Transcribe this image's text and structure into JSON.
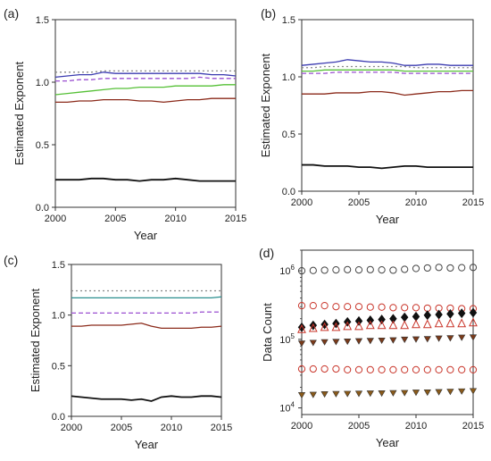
{
  "chart_data": [
    {
      "type": "line",
      "panel_label": "(a)",
      "xlabel": "Year",
      "ylabel": "Estimated Exponent",
      "xlim": [
        2000,
        2015
      ],
      "ylim": [
        0.0,
        1.5
      ],
      "xticks": [
        "2000",
        "2005",
        "2010",
        "2015"
      ],
      "yticks": [
        "0.0",
        "0.5",
        "1.0",
        "1.5"
      ],
      "x": [
        2000,
        2001,
        2002,
        2003,
        2004,
        2005,
        2006,
        2007,
        2008,
        2009,
        2010,
        2011,
        2012,
        2013,
        2014,
        2015
      ],
      "series": [
        {
          "color": "#888888",
          "style": "dotted",
          "values": [
            1.08,
            1.08,
            1.08,
            1.08,
            1.09,
            1.09,
            1.09,
            1.09,
            1.09,
            1.09,
            1.09,
            1.09,
            1.09,
            1.09,
            1.09,
            1.09
          ]
        },
        {
          "color": "#3b3bb0",
          "style": "solid",
          "values": [
            1.04,
            1.05,
            1.06,
            1.06,
            1.08,
            1.07,
            1.07,
            1.07,
            1.07,
            1.07,
            1.07,
            1.07,
            1.07,
            1.06,
            1.06,
            1.05
          ]
        },
        {
          "color": "#9a4fd0",
          "style": "dashed",
          "values": [
            1.01,
            1.01,
            1.02,
            1.02,
            1.03,
            1.03,
            1.03,
            1.03,
            1.03,
            1.03,
            1.03,
            1.03,
            1.04,
            1.03,
            1.03,
            1.03
          ]
        },
        {
          "color": "#55c036",
          "style": "solid",
          "values": [
            0.9,
            0.91,
            0.92,
            0.93,
            0.94,
            0.95,
            0.95,
            0.96,
            0.96,
            0.96,
            0.97,
            0.97,
            0.97,
            0.97,
            0.98,
            0.98
          ]
        },
        {
          "color": "#8b2a1a",
          "style": "solid",
          "values": [
            0.84,
            0.84,
            0.85,
            0.85,
            0.86,
            0.86,
            0.86,
            0.85,
            0.85,
            0.84,
            0.85,
            0.86,
            0.86,
            0.87,
            0.87,
            0.87
          ]
        },
        {
          "color": "#111111",
          "style": "solid",
          "values": [
            0.22,
            0.22,
            0.22,
            0.23,
            0.23,
            0.22,
            0.22,
            0.21,
            0.22,
            0.22,
            0.23,
            0.22,
            0.21,
            0.21,
            0.21,
            0.21
          ]
        }
      ]
    },
    {
      "type": "line",
      "panel_label": "(b)",
      "xlabel": "Year",
      "ylabel": "Estimated Exponent",
      "xlim": [
        2000,
        2015
      ],
      "ylim": [
        0.0,
        1.5
      ],
      "xticks": [
        "2000",
        "2005",
        "2010",
        "2015"
      ],
      "yticks": [
        "0.0",
        "0.5",
        "1.0",
        "1.5"
      ],
      "x": [
        2000,
        2001,
        2002,
        2003,
        2004,
        2005,
        2006,
        2007,
        2008,
        2009,
        2010,
        2011,
        2012,
        2013,
        2014,
        2015
      ],
      "series": [
        {
          "color": "#3b3bb0",
          "style": "solid",
          "values": [
            1.1,
            1.11,
            1.12,
            1.13,
            1.15,
            1.14,
            1.13,
            1.13,
            1.12,
            1.1,
            1.1,
            1.11,
            1.11,
            1.1,
            1.1,
            1.1
          ]
        },
        {
          "color": "#888888",
          "style": "dotted",
          "values": [
            1.08,
            1.08,
            1.09,
            1.09,
            1.09,
            1.09,
            1.09,
            1.09,
            1.09,
            1.09,
            1.08,
            1.08,
            1.08,
            1.08,
            1.08,
            1.08
          ]
        },
        {
          "color": "#55c036",
          "style": "solid",
          "values": [
            1.05,
            1.05,
            1.06,
            1.06,
            1.06,
            1.06,
            1.06,
            1.06,
            1.06,
            1.05,
            1.05,
            1.05,
            1.05,
            1.05,
            1.05,
            1.05
          ]
        },
        {
          "color": "#9a4fd0",
          "style": "dashed",
          "values": [
            1.03,
            1.03,
            1.03,
            1.04,
            1.04,
            1.04,
            1.04,
            1.04,
            1.04,
            1.03,
            1.03,
            1.03,
            1.03,
            1.03,
            1.03,
            1.03
          ]
        },
        {
          "color": "#8b2a1a",
          "style": "solid",
          "values": [
            0.85,
            0.85,
            0.85,
            0.86,
            0.86,
            0.86,
            0.87,
            0.87,
            0.86,
            0.84,
            0.85,
            0.86,
            0.87,
            0.87,
            0.88,
            0.88
          ]
        },
        {
          "color": "#111111",
          "style": "solid",
          "values": [
            0.23,
            0.23,
            0.22,
            0.22,
            0.22,
            0.21,
            0.21,
            0.2,
            0.21,
            0.22,
            0.22,
            0.21,
            0.21,
            0.21,
            0.21,
            0.21
          ]
        }
      ]
    },
    {
      "type": "line",
      "panel_label": "(c)",
      "xlabel": "Year",
      "ylabel": "Estimated Exponent",
      "xlim": [
        2000,
        2015
      ],
      "ylim": [
        0.0,
        1.5
      ],
      "xticks": [
        "2000",
        "2005",
        "2010",
        "2015"
      ],
      "yticks": [
        "0.0",
        "0.5",
        "1.0",
        "1.5"
      ],
      "x": [
        2000,
        2001,
        2002,
        2003,
        2004,
        2005,
        2006,
        2007,
        2008,
        2009,
        2010,
        2011,
        2012,
        2013,
        2014,
        2015
      ],
      "series": [
        {
          "color": "#888888",
          "style": "dotted",
          "values": [
            1.24,
            1.24,
            1.24,
            1.24,
            1.24,
            1.24,
            1.24,
            1.24,
            1.24,
            1.24,
            1.24,
            1.24,
            1.24,
            1.24,
            1.24,
            1.24
          ]
        },
        {
          "color": "#2a8f8f",
          "style": "solid",
          "values": [
            1.17,
            1.17,
            1.17,
            1.17,
            1.17,
            1.17,
            1.17,
            1.17,
            1.17,
            1.17,
            1.17,
            1.17,
            1.17,
            1.17,
            1.17,
            1.18
          ]
        },
        {
          "color": "#9a4fd0",
          "style": "dashed",
          "values": [
            1.02,
            1.02,
            1.02,
            1.02,
            1.02,
            1.02,
            1.02,
            1.02,
            1.02,
            1.02,
            1.02,
            1.02,
            1.02,
            1.03,
            1.03,
            1.03
          ]
        },
        {
          "color": "#8b2a1a",
          "style": "solid",
          "values": [
            0.89,
            0.89,
            0.9,
            0.9,
            0.9,
            0.9,
            0.91,
            0.92,
            0.89,
            0.87,
            0.87,
            0.87,
            0.87,
            0.88,
            0.88,
            0.89
          ]
        },
        {
          "color": "#111111",
          "style": "solid",
          "values": [
            0.2,
            0.19,
            0.18,
            0.17,
            0.17,
            0.17,
            0.16,
            0.17,
            0.15,
            0.19,
            0.2,
            0.19,
            0.19,
            0.2,
            0.2,
            0.19
          ]
        }
      ]
    },
    {
      "type": "scatter",
      "panel_label": "(d)",
      "xlabel": "Year",
      "ylabel": "Data Count",
      "yscale": "log",
      "xlim": [
        2000,
        2015
      ],
      "ylim": [
        8000,
        2000000
      ],
      "xticks": [
        "2000",
        "2005",
        "2010",
        "2015"
      ],
      "yticks": [
        {
          "value": 10000,
          "base": "10",
          "exp": "4"
        },
        {
          "value": 100000,
          "base": "10",
          "exp": "5"
        },
        {
          "value": 1000000,
          "base": "10",
          "exp": "6"
        }
      ],
      "x": [
        2000,
        2001,
        2002,
        2003,
        2004,
        2005,
        2006,
        2007,
        2008,
        2009,
        2010,
        2011,
        2012,
        2013,
        2014,
        2015
      ],
      "series": [
        {
          "marker": "circle-open",
          "color": "#444444",
          "values": [
            1000000,
            1010000,
            1020000,
            1030000,
            1040000,
            1030000,
            1040000,
            1030000,
            1020000,
            1050000,
            1080000,
            1100000,
            1120000,
            1100000,
            1110000,
            1120000
          ]
        },
        {
          "marker": "circle-open",
          "color": "#c9352a",
          "values": [
            310000,
            310000,
            310000,
            300000,
            300000,
            300000,
            295000,
            295000,
            290000,
            290000,
            290000,
            285000,
            285000,
            285000,
            280000,
            280000
          ]
        },
        {
          "marker": "diamond-filled",
          "color": "#111111",
          "values": [
            150000,
            160000,
            165000,
            170000,
            180000,
            185000,
            190000,
            195000,
            200000,
            210000,
            215000,
            225000,
            230000,
            235000,
            240000,
            245000
          ]
        },
        {
          "marker": "triangle-up-open",
          "color": "#c9352a",
          "values": [
            140000,
            145000,
            150000,
            150000,
            155000,
            155000,
            160000,
            160000,
            160000,
            160000,
            165000,
            165000,
            170000,
            170000,
            170000,
            175000
          ]
        },
        {
          "marker": "triangle-down-filled",
          "color": "#7a3a1a",
          "values": [
            88000,
            90000,
            92000,
            93000,
            94000,
            95000,
            96000,
            97000,
            98000,
            100000,
            101000,
            102000,
            104000,
            105000,
            107000,
            108000
          ]
        },
        {
          "marker": "circle-open",
          "color": "#c9352a",
          "values": [
            37000,
            37000,
            37000,
            37000,
            36000,
            36000,
            36000,
            36000,
            36000,
            36000,
            36000,
            36000,
            36000,
            36000,
            36000,
            36000
          ]
        },
        {
          "marker": "triangle-down-filled",
          "color": "#8a5a1a",
          "values": [
            15500,
            15700,
            16000,
            16100,
            16200,
            16300,
            16400,
            16500,
            16600,
            16700,
            16900,
            17000,
            17200,
            17400,
            17600,
            17800
          ]
        }
      ]
    }
  ]
}
